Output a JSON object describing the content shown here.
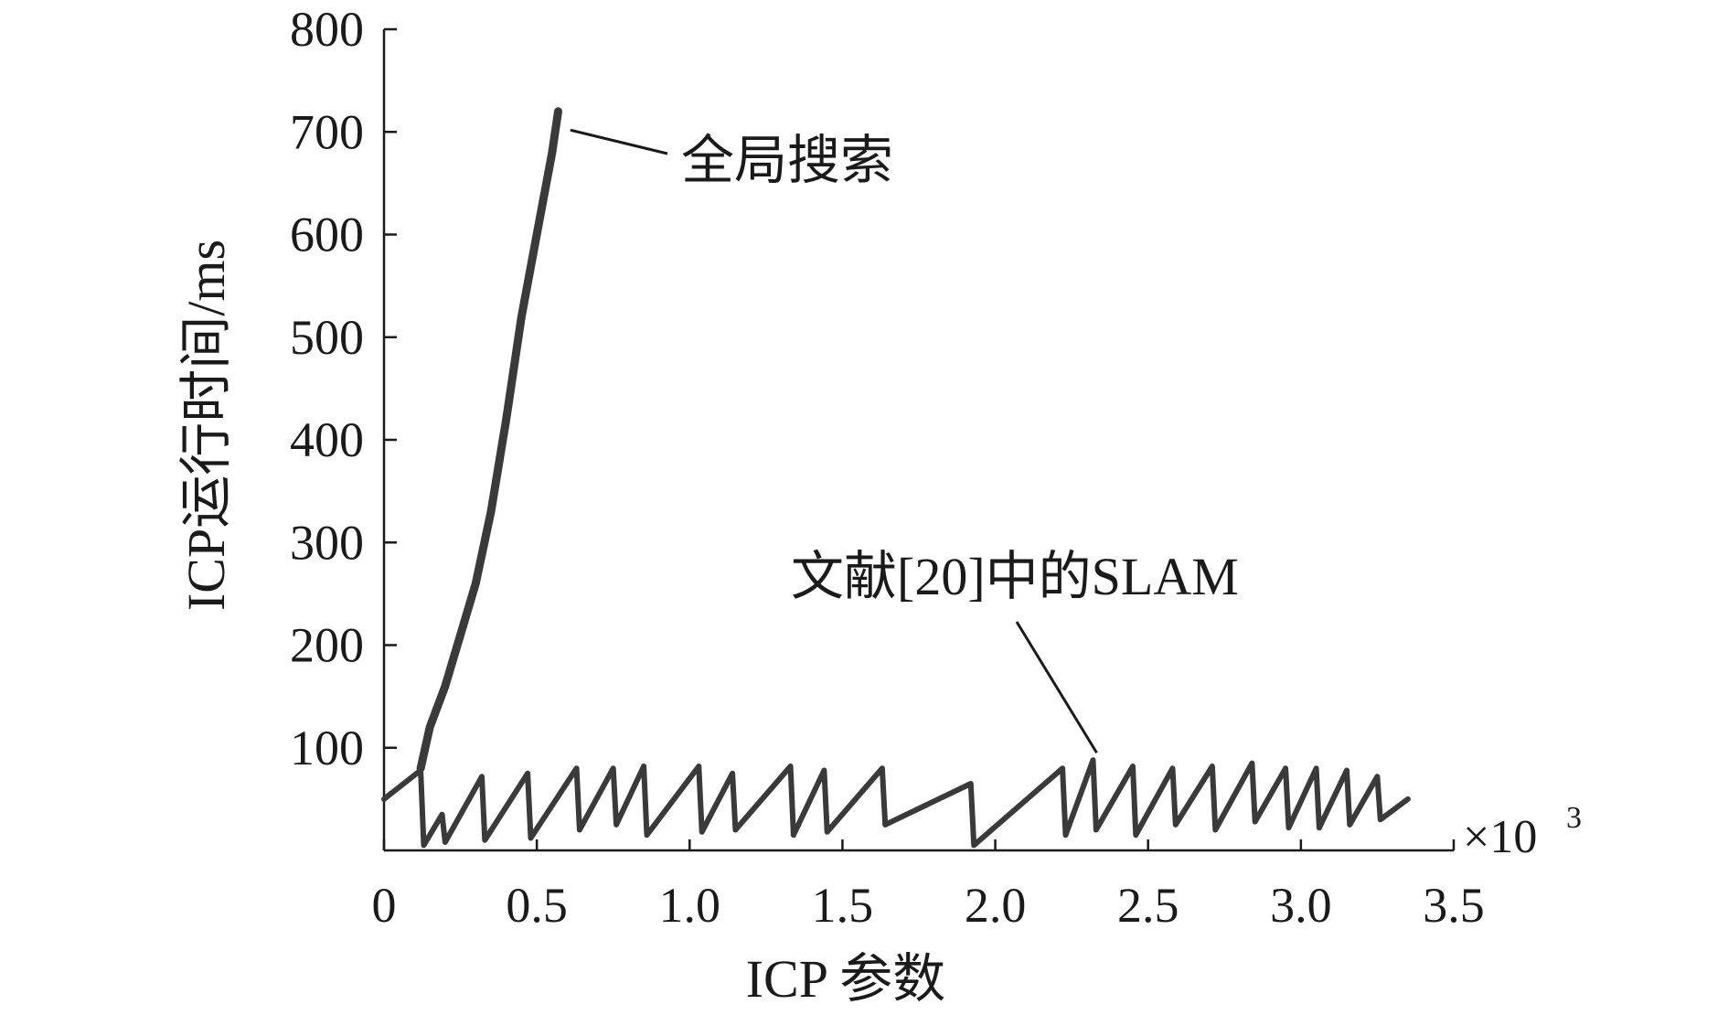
{
  "chart_data": {
    "type": "line",
    "title": "",
    "xlabel": "ICP 参数",
    "ylabel": "ICP运行时间/ms",
    "x_multiplier": "×10",
    "x_multiplier_exp": "3",
    "xlim": [
      0,
      3.5
    ],
    "ylim": [
      0,
      800
    ],
    "x_ticks": [
      "0",
      "0.5",
      "1.0",
      "1.5",
      "2.0",
      "2.5",
      "3.0",
      "3.5"
    ],
    "y_ticks": [
      "100",
      "200",
      "300",
      "400",
      "500",
      "600",
      "700",
      "800"
    ],
    "grid": false,
    "line_color": "#3a3a3a",
    "series": [
      {
        "name": "全局搜索",
        "x": [
          0.12,
          0.15,
          0.2,
          0.25,
          0.3,
          0.35,
          0.4,
          0.45,
          0.5,
          0.55,
          0.57
        ],
        "y": [
          80,
          120,
          160,
          210,
          260,
          330,
          420,
          520,
          600,
          680,
          720
        ]
      },
      {
        "name": "文献[20]中的SLAM",
        "x": [
          0,
          0.12,
          0.13,
          0.19,
          0.2,
          0.32,
          0.33,
          0.47,
          0.48,
          0.63,
          0.64,
          0.75,
          0.76,
          0.85,
          0.86,
          1.03,
          1.04,
          1.14,
          1.15,
          1.33,
          1.34,
          1.44,
          1.45,
          1.63,
          1.64,
          1.92,
          1.93,
          2.22,
          2.23,
          2.32,
          2.33,
          2.45,
          2.46,
          2.58,
          2.59,
          2.71,
          2.72,
          2.84,
          2.85,
          2.95,
          2.96,
          3.05,
          3.06,
          3.15,
          3.16,
          3.25,
          3.26,
          3.35
        ],
        "y": [
          50,
          78,
          5,
          35,
          8,
          72,
          10,
          75,
          12,
          80,
          20,
          80,
          25,
          82,
          15,
          82,
          18,
          75,
          20,
          82,
          15,
          78,
          18,
          80,
          25,
          65,
          5,
          80,
          15,
          88,
          20,
          82,
          15,
          80,
          25,
          82,
          20,
          85,
          28,
          80,
          22,
          80,
          22,
          78,
          25,
          72,
          30,
          50
        ]
      }
    ],
    "annotations": [
      {
        "text": "全局搜索",
        "x": 0.58,
        "y": 700
      },
      {
        "text": "文献[20]中的SLAM",
        "x": 2.32,
        "y": 88
      }
    ]
  }
}
